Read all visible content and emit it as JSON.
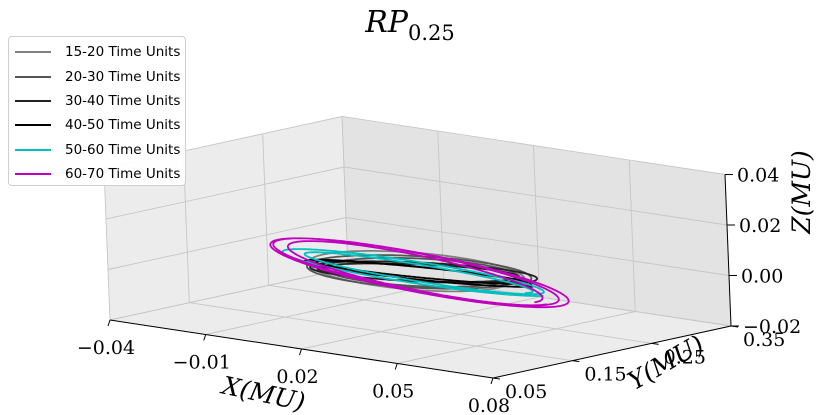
{
  "chart_data": {
    "type": "line",
    "projection": "3d",
    "title": {
      "main": "RP",
      "subscript": "0.25"
    },
    "xlabel": "X(MU)",
    "ylabel": "Y(MU)",
    "zlabel": "Z(MU)",
    "xlim": [
      -0.04,
      0.08
    ],
    "ylim": [
      0.05,
      0.35
    ],
    "zlim": [
      -0.02,
      0.04
    ],
    "xticks": [
      "−0.04",
      "−0.01",
      "0.02",
      "0.05",
      "0.08"
    ],
    "yticks": [
      "0.05",
      "0.15",
      "0.25",
      "0.35"
    ],
    "zticks": [
      "−0.02",
      "0.00",
      "0.02",
      "0.04"
    ],
    "grid": true,
    "legend_position": "upper-left",
    "series": [
      {
        "name": "15-20 Time Units",
        "color": "#808080",
        "center": [
          0.02,
          0.2,
          0.0
        ],
        "radius_x": 0.03,
        "radius_y": 0.05,
        "z_amplitude": 0.002,
        "loops": 1
      },
      {
        "name": "20-30 Time Units",
        "color": "#555555",
        "center": [
          0.02,
          0.2,
          0.0
        ],
        "radius_x": 0.03,
        "radius_y": 0.05,
        "z_amplitude": 0.002,
        "loops": 2
      },
      {
        "name": "30-40 Time Units",
        "color": "#222222",
        "center": [
          0.02,
          0.2,
          0.0
        ],
        "radius_x": 0.032,
        "radius_y": 0.05,
        "z_amplitude": 0.003,
        "loops": 2
      },
      {
        "name": "40-50 Time Units",
        "color": "#000000",
        "center": [
          0.02,
          0.2,
          0.0
        ],
        "radius_x": 0.033,
        "radius_y": 0.05,
        "z_amplitude": 0.003,
        "loops": 2
      },
      {
        "name": "50-60 Time Units",
        "color": "#00bfbf",
        "center": [
          0.02,
          0.2,
          0.0
        ],
        "radius_x": 0.036,
        "radius_y": 0.06,
        "z_amplitude": 0.004,
        "loops": 2
      },
      {
        "name": "60-70 Time Units",
        "color": "#bf00bf",
        "center": [
          0.02,
          0.2,
          0.0
        ],
        "radius_x": 0.04,
        "radius_y": 0.06,
        "z_amplitude": 0.005,
        "loops": 3
      }
    ]
  }
}
